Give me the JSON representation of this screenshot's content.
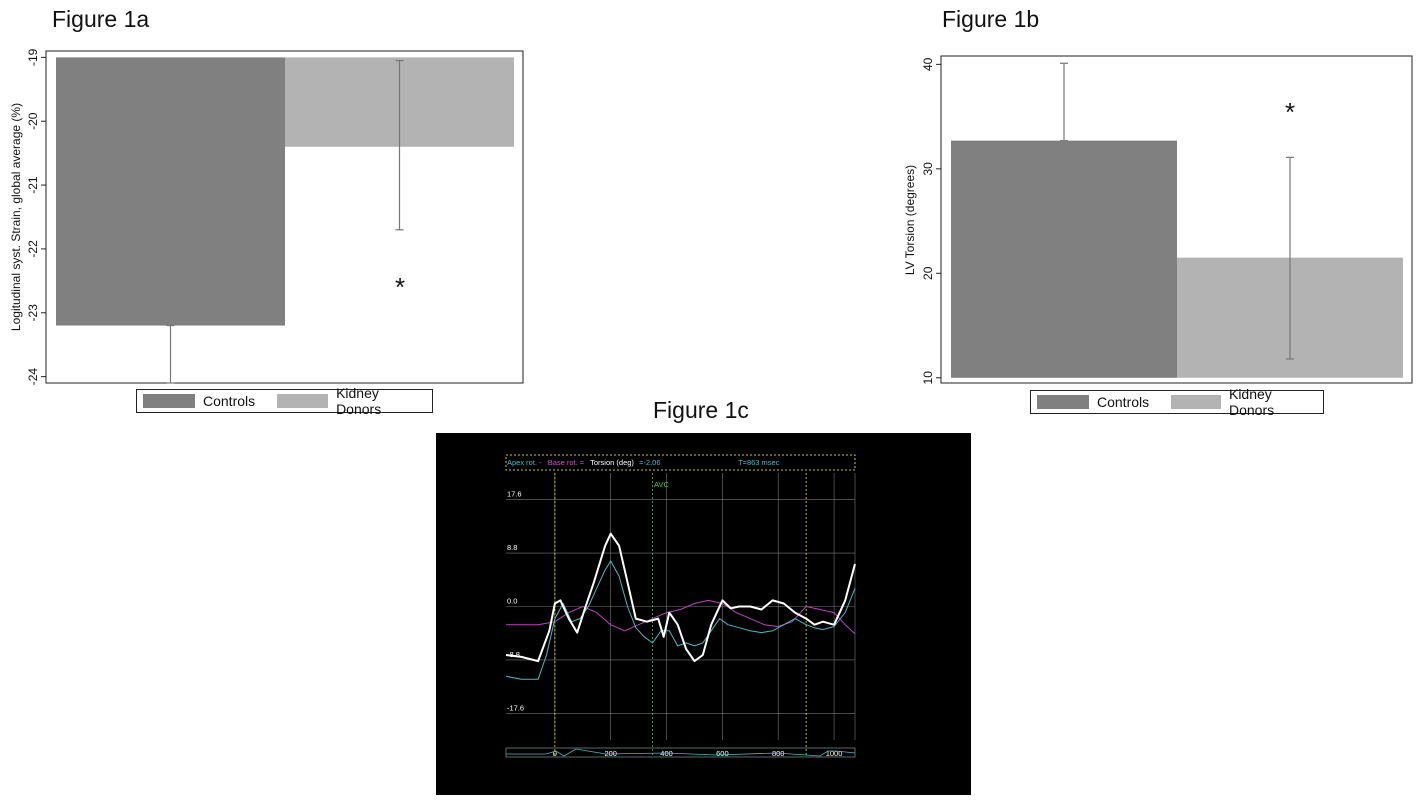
{
  "figures": {
    "a_title": "Figure 1a",
    "b_title": "Figure 1b",
    "c_title": "Figure 1c"
  },
  "colors": {
    "controls": "#808080",
    "kidney_donors": "#b3b3b3",
    "apex": "#4ab8c8",
    "base": "#c040c0",
    "torsion": "#ffffff",
    "markers": "#e8e030",
    "avc": "#40d040"
  },
  "chart_data": [
    {
      "type": "bar",
      "id": "fig1a",
      "title": "Figure 1a",
      "categories": [
        "Controls",
        "Kidney Donors"
      ],
      "values": [
        -23.2,
        -20.4
      ],
      "error_bars": [
        [
          -24.1,
          -23.2
        ],
        [
          -21.7,
          -19.05
        ]
      ],
      "ylabel": "Logitudinal syst. Strain, global average (%)",
      "ylim": [
        -24.1,
        -18.9
      ],
      "yticks": [
        "-24",
        "-23",
        "-22",
        "-21",
        "-20",
        "-19"
      ],
      "annotation": "*",
      "legend": [
        "Controls",
        "Kidney Donors"
      ],
      "legend_position": "bottom",
      "grid": false
    },
    {
      "type": "bar",
      "id": "fig1b",
      "title": "Figure 1b",
      "categories": [
        "Controls",
        "Kidney Donors"
      ],
      "values": [
        32.7,
        21.5
      ],
      "error_bars": [
        [
          32.7,
          40.1
        ],
        [
          11.8,
          31.1
        ]
      ],
      "ylabel": "LV Torsion (degrees)",
      "ylim": [
        9.5,
        40.8
      ],
      "yticks": [
        "10",
        "20",
        "30",
        "40"
      ],
      "annotation": "*",
      "legend": [
        "Controls",
        "Kidney Donors"
      ],
      "legend_position": "bottom",
      "grid": false
    },
    {
      "type": "line",
      "id": "fig1c",
      "title": "Figure 1c",
      "header": {
        "apex": "Apex rot. -",
        "base": "Base rot. =",
        "torsion": "Torsion (deg)",
        "value": "=-2.06",
        "time": "T=863 msec"
      },
      "avc_label": "AVC",
      "xticks": [
        "0",
        "200",
        "400",
        "600",
        "800",
        "1000"
      ],
      "yticks": [
        "17.6",
        "8.8",
        "0.0",
        "-8.8",
        "-17.6"
      ],
      "xlim": [
        -175,
        1075
      ],
      "ylim": [
        -22,
        22
      ],
      "markers_x": [
        0,
        350,
        900
      ],
      "series": [
        {
          "key": "torsion",
          "x": [
            -175,
            -120,
            -60,
            -20,
            0,
            20,
            50,
            80,
            110,
            140,
            180,
            200,
            230,
            260,
            290,
            330,
            370,
            390,
            410,
            440,
            470,
            500,
            530,
            560,
            600,
            630,
            660,
            700,
            740,
            780,
            820,
            860,
            900,
            930,
            960,
            1000,
            1040,
            1075
          ],
          "y": [
            -8,
            -8.3,
            -9,
            -4,
            0.5,
            1,
            -2,
            -4.3,
            0,
            4,
            10,
            12,
            10,
            4,
            -2,
            -2.5,
            -2,
            -5,
            -1,
            -3,
            -7,
            -9,
            -8,
            -3,
            1,
            -0.3,
            0,
            0,
            -0.5,
            1,
            0.5,
            -1,
            -2,
            -3,
            -2.5,
            -3,
            1,
            7
          ]
        },
        {
          "key": "apex",
          "x": [
            -175,
            -120,
            -60,
            -30,
            0,
            30,
            60,
            90,
            120,
            150,
            180,
            200,
            230,
            260,
            290,
            320,
            350,
            380,
            410,
            440,
            470,
            500,
            530,
            560,
            590,
            620,
            660,
            700,
            740,
            780,
            820,
            860,
            900,
            930,
            960,
            1000,
            1040,
            1075
          ],
          "y": [
            -11.5,
            -12,
            -12,
            -8,
            -2,
            0.5,
            -2.5,
            -2,
            0,
            3,
            6,
            7.5,
            5,
            0,
            -3.5,
            -5,
            -6,
            -4,
            -4,
            -6.5,
            -6,
            -6.5,
            -6,
            -4,
            -2,
            -3,
            -3.5,
            -4,
            -4.3,
            -4,
            -3,
            -2,
            -3,
            -3.5,
            -3.8,
            -3.3,
            -1,
            3
          ]
        },
        {
          "key": "base",
          "x": [
            -175,
            -120,
            -60,
            0,
            50,
            100,
            150,
            200,
            250,
            300,
            350,
            400,
            450,
            500,
            550,
            600,
            650,
            700,
            750,
            800,
            850,
            900,
            950,
            1000,
            1040,
            1075
          ],
          "y": [
            -3,
            -3,
            -3,
            -2.5,
            -1,
            0,
            -1,
            -3,
            -4,
            -3,
            -2,
            -1,
            -0.5,
            0.5,
            1,
            0.5,
            -1,
            -2,
            -3,
            -3.3,
            -2.5,
            0,
            -0.5,
            -1,
            -3,
            -4.5
          ]
        }
      ]
    }
  ]
}
